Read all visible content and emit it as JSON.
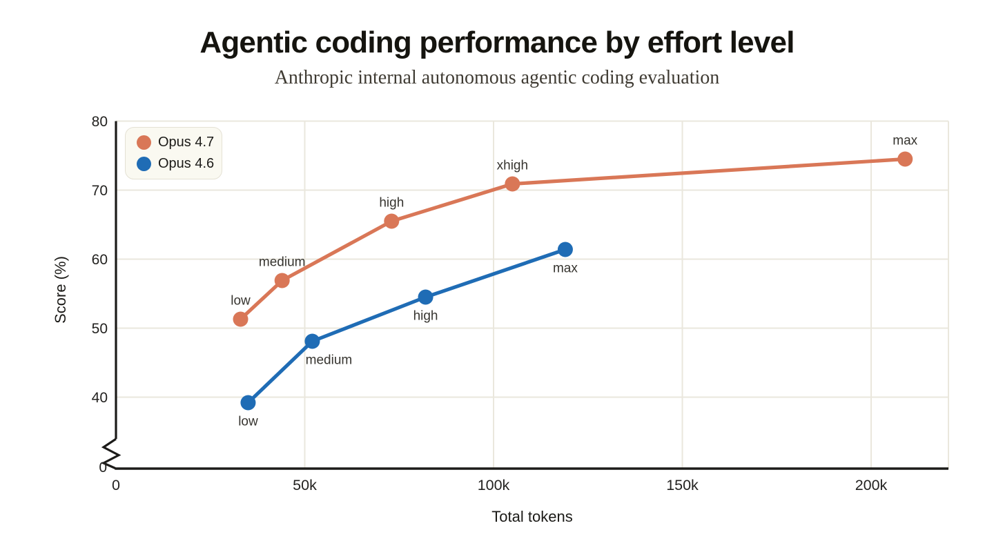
{
  "header": {
    "title": "Agentic coding performance by effort level",
    "subtitle": "Anthropic internal autonomous agentic coding evaluation"
  },
  "chart_data": {
    "type": "line",
    "title": "Agentic coding performance by effort level",
    "subtitle": "Anthropic internal autonomous agentic coding evaluation",
    "xlabel": "Total tokens",
    "ylabel": "Score (%)",
    "grid": true,
    "legend_position": "top-left",
    "background_color": "#ffffff",
    "grid_color": "#eae7dd",
    "axis_color": "#1c1b19",
    "tick_label_color": "#232220",
    "point_label_color": "#36342f",
    "x_axis": {
      "label": "Total tokens",
      "range": [
        0,
        220500
      ],
      "ticks": [
        {
          "value": 0,
          "label": "0"
        },
        {
          "value": 50000,
          "label": "50k"
        },
        {
          "value": 100000,
          "label": "100k"
        },
        {
          "value": 150000,
          "label": "150k"
        },
        {
          "value": 200000,
          "label": "200k"
        }
      ]
    },
    "y_axis": {
      "label": "Score (%)",
      "broken_axis": true,
      "origin_label": "0",
      "visible_range": [
        40,
        80
      ],
      "ticks": [
        {
          "value": 40,
          "label": "40"
        },
        {
          "value": 50,
          "label": "50"
        },
        {
          "value": 60,
          "label": "60"
        },
        {
          "value": 70,
          "label": "70"
        },
        {
          "value": 80,
          "label": "80"
        }
      ]
    },
    "series": [
      {
        "name": "Opus 4.7",
        "color": "#d97757",
        "label_side": "above",
        "points": [
          {
            "tokens": 33000,
            "score": 51.3,
            "label": "low"
          },
          {
            "tokens": 44000,
            "score": 56.9,
            "label": "medium"
          },
          {
            "tokens": 73000,
            "score": 65.5,
            "label": "high"
          },
          {
            "tokens": 105000,
            "score": 70.9,
            "label": "xhigh"
          },
          {
            "tokens": 209000,
            "score": 74.5,
            "label": "max"
          }
        ]
      },
      {
        "name": "Opus 4.6",
        "color": "#1f6cb5",
        "label_side": "below",
        "points": [
          {
            "tokens": 35000,
            "score": 39.2,
            "label": "low"
          },
          {
            "tokens": 52000,
            "score": 48.1,
            "label": "medium",
            "label_dx": 24
          },
          {
            "tokens": 82000,
            "score": 54.5,
            "label": "high"
          },
          {
            "tokens": 119000,
            "score": 61.4,
            "label": "max"
          }
        ]
      }
    ]
  }
}
